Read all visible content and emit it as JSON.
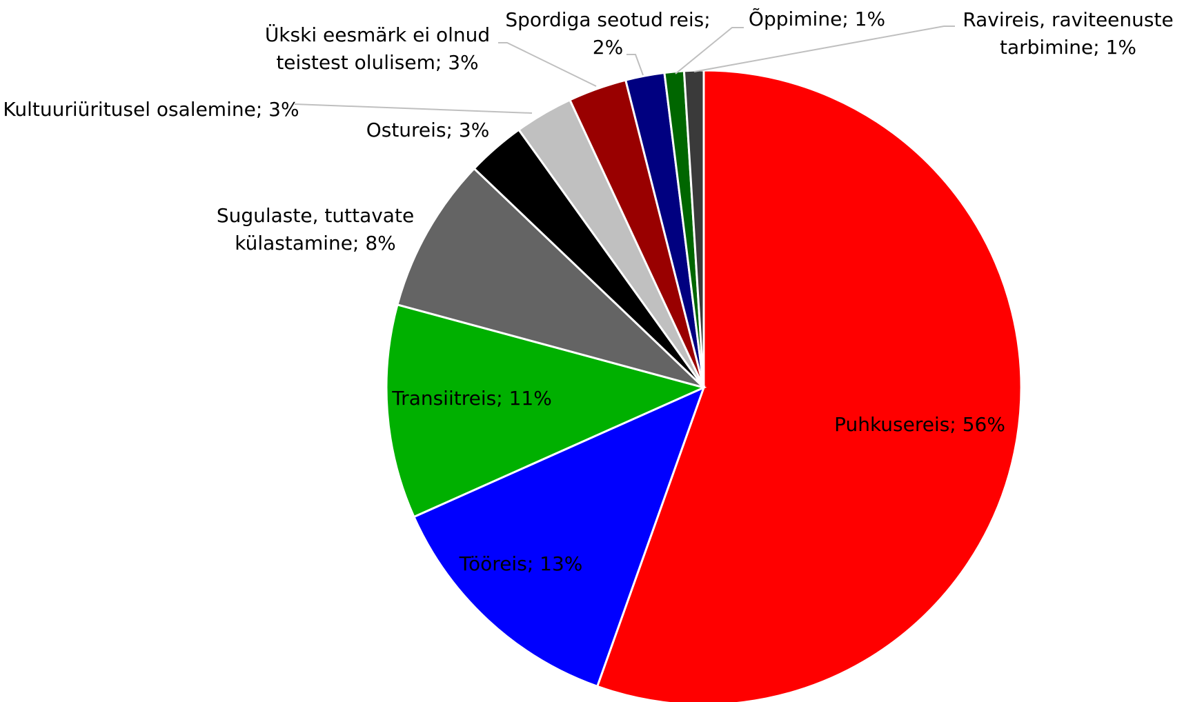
{
  "chart_data": {
    "type": "pie",
    "categories": [
      "Puhkusereis",
      "Tööreis",
      "Transiitreis",
      "Sugulaste, tuttavate külastamine",
      "Ostureis",
      "Kultuuriüritusel osalemine",
      "Ükski eesmärk ei olnud teistest olulisem",
      "Spordiga seotud reis",
      "Õppimine",
      "Ravireis, raviteenuste tarbimine"
    ],
    "values": [
      56,
      13,
      11,
      8,
      3,
      3,
      3,
      2,
      1,
      1
    ],
    "value_labels": [
      "56%",
      "13%",
      "11%",
      "8%",
      "3%",
      "3%",
      "3%",
      "2%",
      "1%",
      "1%"
    ],
    "separator": "; ",
    "colors": [
      "#ff0000",
      "#0000ff",
      "#00b000",
      "#646464",
      "#000000",
      "#c0c0c0",
      "#990000",
      "#000080",
      "#006600",
      "#3a3a3a"
    ]
  }
}
